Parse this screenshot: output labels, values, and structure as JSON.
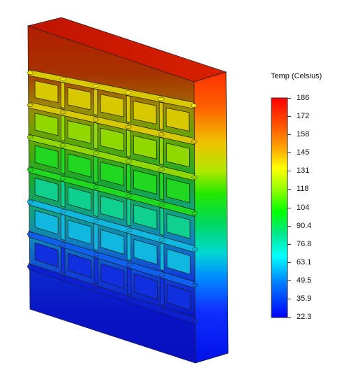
{
  "legend": {
    "title": "Temp (Celsius)",
    "ticks": [
      "186",
      "172",
      "158",
      "145",
      "131",
      "118",
      "104",
      "90.4",
      "76.8",
      "63.1",
      "49.5",
      "35.9",
      "22.3"
    ],
    "colors": [
      "#ff0000",
      "#ff6600",
      "#ffcc00",
      "#ffff00",
      "#aaff00",
      "#00ff00",
      "#00e060",
      "#00e0a0",
      "#00ffff",
      "#0088ff",
      "#0000ff"
    ]
  },
  "model": {
    "grid_rows": 6,
    "grid_cols": 5,
    "colors": {
      "top_face": "#c01800",
      "right_side_top": "#ff3000",
      "hot": "#b02000",
      "warm": "#b8a000",
      "mid": "#20c020",
      "cool": "#10b0a0",
      "cold": "#1040e0",
      "base": "#0a10c8"
    }
  }
}
